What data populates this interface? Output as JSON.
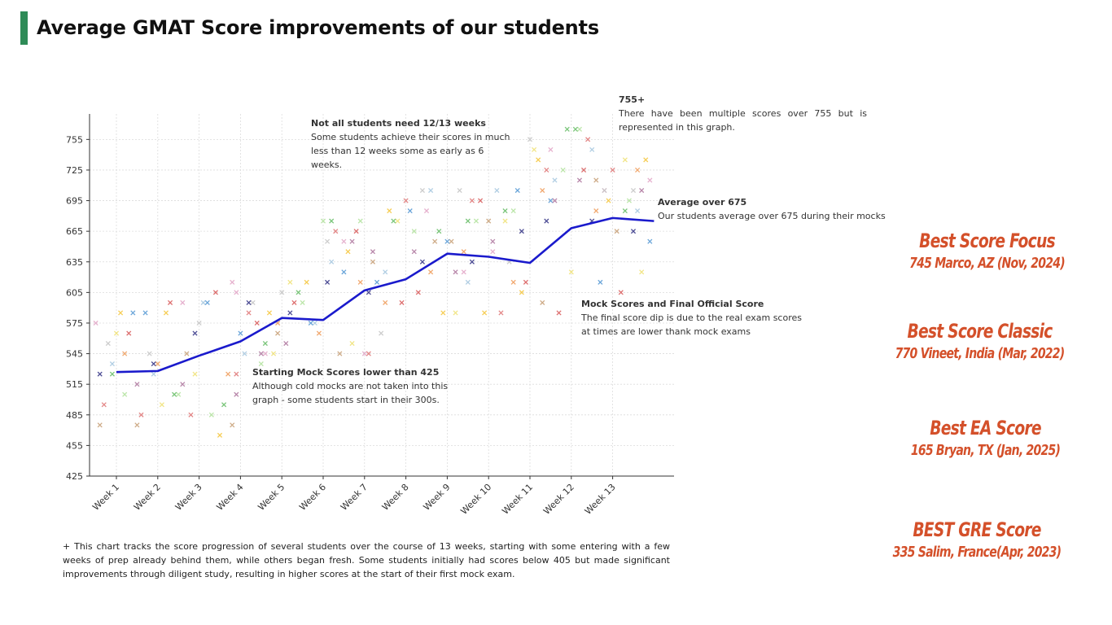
{
  "page": {
    "title": "Average GMAT Score improvements of our students",
    "accent_color": "#2e8b57"
  },
  "annotations": {
    "not_all": {
      "heading": "Not all students need 12/13 weeks",
      "body": "Some students achieve their scores in much less than 12 weeks some as early as 6 weeks."
    },
    "over755": {
      "heading": "755+",
      "body": "There have been multiple scores over 755 but is represented in this graph."
    },
    "avg675": {
      "heading": "Average over 675",
      "body": "Our students average over 675 during their mocks"
    },
    "mock_final": {
      "heading": "Mock Scores and Final Official Score",
      "body": "The final score dip is due to the real exam scores at times are lower thank mock exams"
    },
    "starting": {
      "heading": "Starting Mock Scores lower than 425",
      "body": "Although cold mocks are not taken into this graph - some students start in their 300s."
    }
  },
  "footnote": "+ This chart tracks the score progression of several students over the course of 13 weeks, starting with some entering with a few weeks of prep already behind them, while others began fresh. Some students initially had scores below 405 but made significant improvements through diligent study, resulting in higher scores at the start of their first mock exam.",
  "records": [
    {
      "title": "Best Score Focus",
      "sub": "745  Marco, AZ (Nov, 2024)"
    },
    {
      "title": "Best Score Classic",
      "sub": "770  Vineet, India (Mar, 2022)"
    },
    {
      "title": "Best EA Score",
      "sub": "165 Bryan, TX (Jan, 2025)"
    },
    {
      "title": "BEST GRE Score",
      "sub": "335  Salim, France(Apr, 2023)"
    }
  ],
  "record_color": "#d4502a",
  "chart_data": {
    "type": "scatter",
    "xlabel": "",
    "ylabel": "",
    "categories": [
      "Week 1",
      "Week 2",
      "Week 3",
      "Week 4",
      "Week 5",
      "Week 6",
      "Week 7",
      "Week 8",
      "Week 9",
      "Week 10",
      "Week 11",
      "Week 12",
      "Week 13"
    ],
    "y_ticks": [
      425,
      455,
      485,
      515,
      545,
      575,
      605,
      635,
      665,
      695,
      725,
      755
    ],
    "ylim": [
      425,
      780
    ],
    "grid": true,
    "marker": "x",
    "average_line": {
      "color": "#1a1acc",
      "x": [
        1,
        2,
        3,
        4,
        5,
        6,
        7,
        8,
        9,
        10,
        11,
        12,
        13,
        14
      ],
      "y": [
        527,
        528,
        543,
        557,
        580,
        578,
        607,
        618,
        643,
        640,
        634,
        668,
        678,
        675
      ]
    },
    "scatter_series": [
      {
        "color": "#e3a8c9",
        "points": [
          [
            0.5,
            575
          ],
          [
            2.6,
            595
          ],
          [
            3.8,
            615
          ],
          [
            3.9,
            605
          ],
          [
            4.6,
            545
          ],
          [
            6.5,
            655
          ],
          [
            7.0,
            545
          ],
          [
            8.5,
            685
          ],
          [
            9.4,
            625
          ],
          [
            10.1,
            645
          ],
          [
            11.5,
            745
          ],
          [
            12.8,
            705
          ],
          [
            13.9,
            715
          ]
        ]
      },
      {
        "color": "#f0e27a",
        "points": [
          [
            1.0,
            565
          ],
          [
            2.1,
            495
          ],
          [
            2.9,
            525
          ],
          [
            4.8,
            545
          ],
          [
            5.2,
            615
          ],
          [
            6.7,
            555
          ],
          [
            7.8,
            675
          ],
          [
            9.2,
            585
          ],
          [
            10.4,
            675
          ],
          [
            11.1,
            745
          ],
          [
            12.0,
            625
          ],
          [
            13.3,
            735
          ],
          [
            13.7,
            625
          ]
        ]
      },
      {
        "color": "#a9c9e0",
        "points": [
          [
            0.9,
            535
          ],
          [
            1.9,
            525
          ],
          [
            3.1,
            595
          ],
          [
            4.1,
            545
          ],
          [
            5.8,
            575
          ],
          [
            6.2,
            635
          ],
          [
            7.5,
            625
          ],
          [
            8.6,
            705
          ],
          [
            9.5,
            615
          ],
          [
            10.2,
            705
          ],
          [
            11.6,
            715
          ],
          [
            12.5,
            745
          ],
          [
            13.6,
            685
          ]
        ]
      },
      {
        "color": "#b5e3a1",
        "points": [
          [
            1.2,
            505
          ],
          [
            2.5,
            505
          ],
          [
            3.3,
            485
          ],
          [
            4.5,
            535
          ],
          [
            5.5,
            595
          ],
          [
            6.0,
            675
          ],
          [
            6.9,
            675
          ],
          [
            8.2,
            665
          ],
          [
            9.7,
            675
          ],
          [
            10.6,
            685
          ],
          [
            11.8,
            725
          ],
          [
            12.2,
            765
          ],
          [
            13.4,
            695
          ]
        ]
      },
      {
        "color": "#c9a27a",
        "points": [
          [
            0.6,
            475
          ],
          [
            1.5,
            475
          ],
          [
            2.7,
            545
          ],
          [
            3.8,
            475
          ],
          [
            4.9,
            565
          ],
          [
            6.4,
            545
          ],
          [
            7.2,
            635
          ],
          [
            8.7,
            655
          ],
          [
            9.1,
            655
          ],
          [
            10.0,
            675
          ],
          [
            11.3,
            595
          ],
          [
            12.6,
            715
          ],
          [
            13.1,
            665
          ]
        ]
      },
      {
        "color": "#c8c8c8",
        "points": [
          [
            0.8,
            555
          ],
          [
            1.8,
            545
          ],
          [
            3.0,
            575
          ],
          [
            4.3,
            595
          ],
          [
            5.0,
            605
          ],
          [
            6.1,
            655
          ],
          [
            7.4,
            565
          ],
          [
            8.4,
            705
          ],
          [
            9.3,
            705
          ],
          [
            10.5,
            635
          ],
          [
            11.0,
            755
          ],
          [
            12.8,
            705
          ],
          [
            13.5,
            705
          ]
        ]
      },
      {
        "color": "#e07a7a",
        "points": [
          [
            0.7,
            495
          ],
          [
            1.6,
            485
          ],
          [
            2.8,
            485
          ],
          [
            3.9,
            525
          ],
          [
            4.2,
            585
          ],
          [
            6.3,
            665
          ],
          [
            7.1,
            545
          ],
          [
            8.0,
            695
          ],
          [
            9.6,
            695
          ],
          [
            10.3,
            585
          ],
          [
            11.4,
            725
          ],
          [
            12.4,
            755
          ],
          [
            13.0,
            725
          ]
        ]
      },
      {
        "color": "#f5c842",
        "points": [
          [
            1.1,
            585
          ],
          [
            2.2,
            585
          ],
          [
            3.5,
            465
          ],
          [
            4.7,
            585
          ],
          [
            5.6,
            615
          ],
          [
            6.6,
            645
          ],
          [
            7.6,
            685
          ],
          [
            8.9,
            585
          ],
          [
            9.9,
            585
          ],
          [
            10.8,
            605
          ],
          [
            11.2,
            735
          ],
          [
            12.9,
            695
          ],
          [
            13.8,
            735
          ]
        ]
      },
      {
        "color": "#d95f5f",
        "points": [
          [
            1.3,
            565
          ],
          [
            2.3,
            595
          ],
          [
            3.4,
            605
          ],
          [
            4.4,
            575
          ],
          [
            5.3,
            595
          ],
          [
            6.8,
            665
          ],
          [
            7.9,
            595
          ],
          [
            8.3,
            605
          ],
          [
            9.8,
            695
          ],
          [
            10.9,
            615
          ],
          [
            11.7,
            585
          ],
          [
            12.3,
            725
          ],
          [
            13.2,
            605
          ]
        ]
      },
      {
        "color": "#5a9bd5",
        "points": [
          [
            1.4,
            585
          ],
          [
            1.7,
            585
          ],
          [
            3.2,
            595
          ],
          [
            4.0,
            565
          ],
          [
            5.7,
            575
          ],
          [
            6.5,
            625
          ],
          [
            7.3,
            615
          ],
          [
            8.1,
            685
          ],
          [
            9.0,
            655
          ],
          [
            10.7,
            705
          ],
          [
            11.5,
            695
          ],
          [
            12.7,
            615
          ],
          [
            13.9,
            655
          ]
        ]
      },
      {
        "color": "#6bbf6b",
        "points": [
          [
            0.9,
            525
          ],
          [
            2.4,
            505
          ],
          [
            3.6,
            495
          ],
          [
            4.6,
            555
          ],
          [
            5.4,
            605
          ],
          [
            6.2,
            675
          ],
          [
            7.7,
            675
          ],
          [
            8.8,
            665
          ],
          [
            9.5,
            675
          ],
          [
            10.4,
            685
          ],
          [
            11.9,
            765
          ],
          [
            12.1,
            765
          ],
          [
            13.3,
            685
          ]
        ]
      },
      {
        "color": "#f0a060",
        "points": [
          [
            1.2,
            545
          ],
          [
            2.0,
            535
          ],
          [
            3.7,
            525
          ],
          [
            4.9,
            575
          ],
          [
            5.9,
            565
          ],
          [
            6.9,
            615
          ],
          [
            7.5,
            595
          ],
          [
            8.6,
            625
          ],
          [
            9.4,
            645
          ],
          [
            10.6,
            615
          ],
          [
            11.3,
            705
          ],
          [
            12.6,
            685
          ],
          [
            13.6,
            725
          ]
        ]
      },
      {
        "color": "#b07aa1",
        "points": [
          [
            1.5,
            515
          ],
          [
            2.6,
            515
          ],
          [
            3.9,
            505
          ],
          [
            4.5,
            545
          ],
          [
            5.1,
            555
          ],
          [
            6.7,
            655
          ],
          [
            7.2,
            645
          ],
          [
            8.2,
            645
          ],
          [
            9.2,
            625
          ],
          [
            10.1,
            655
          ],
          [
            11.6,
            695
          ],
          [
            12.2,
            715
          ],
          [
            13.7,
            705
          ]
        ]
      },
      {
        "color": "#3a3a8a",
        "points": [
          [
            0.6,
            525
          ],
          [
            1.9,
            535
          ],
          [
            2.9,
            565
          ],
          [
            4.2,
            595
          ],
          [
            5.2,
            585
          ],
          [
            6.1,
            615
          ],
          [
            7.1,
            605
          ],
          [
            8.4,
            635
          ],
          [
            9.6,
            635
          ],
          [
            10.8,
            665
          ],
          [
            11.4,
            675
          ],
          [
            12.5,
            675
          ],
          [
            13.5,
            665
          ]
        ]
      }
    ]
  }
}
